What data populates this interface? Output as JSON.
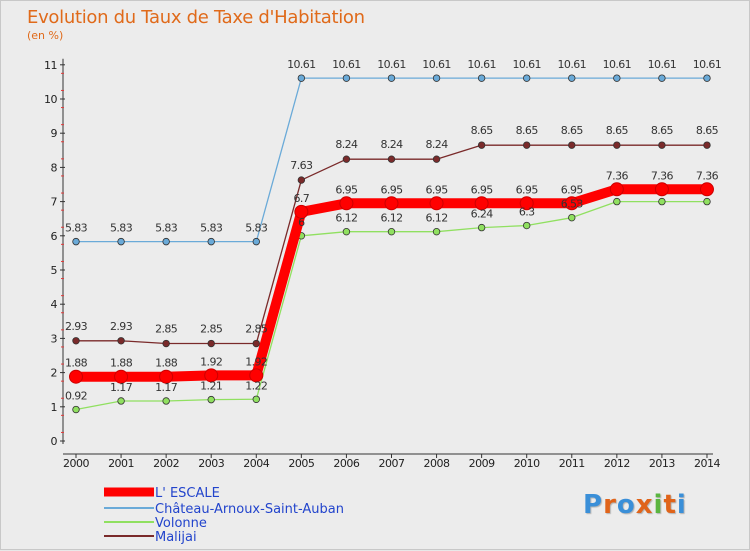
{
  "header": {
    "title": "Evolution du Taux de Taxe d'Habitation",
    "subtitle": "(en %)"
  },
  "chart_data": {
    "type": "line",
    "title": "Evolution du Taux de Taxe d'Habitation",
    "ylabel": "(en %)",
    "xlabel": "",
    "ylim": [
      0,
      11
    ],
    "yticks": [
      "0",
      "1",
      "2",
      "3",
      "4",
      "5",
      "6",
      "7",
      "8",
      "9",
      "10",
      "11"
    ],
    "categories": [
      "2000",
      "2001",
      "2002",
      "2003",
      "2004",
      "2005",
      "2006",
      "2007",
      "2008",
      "2009",
      "2010",
      "2011",
      "2012",
      "2013",
      "2014"
    ],
    "series": [
      {
        "name": "L' ESCALE",
        "color": "#ff0000",
        "values": [
          1.88,
          1.88,
          1.88,
          1.92,
          1.92,
          6.7,
          6.95,
          6.95,
          6.95,
          6.95,
          6.95,
          6.95,
          7.36,
          7.36,
          7.36
        ]
      },
      {
        "name": "Château-Arnoux-Saint-Auban",
        "color": "#6aaad8",
        "values": [
          5.83,
          5.83,
          5.83,
          5.83,
          5.83,
          10.61,
          10.61,
          10.61,
          10.61,
          10.61,
          10.61,
          10.61,
          10.61,
          10.61,
          10.61
        ]
      },
      {
        "name": "Volonne",
        "color": "#90e060",
        "values": [
          0.92,
          1.17,
          1.17,
          1.21,
          1.22,
          6,
          6.12,
          6.12,
          6.12,
          6.24,
          6.3,
          6.53,
          7,
          7,
          7
        ]
      },
      {
        "name": "Malijai",
        "color": "#7a2a2a",
        "values": [
          2.93,
          2.93,
          2.85,
          2.85,
          2.85,
          7.63,
          8.24,
          8.24,
          8.24,
          8.65,
          8.65,
          8.65,
          8.65,
          8.65,
          8.65
        ]
      }
    ],
    "data_labels": {
      "L' ESCALE": [
        "1.88",
        "1.88",
        "1.88",
        "1.92",
        "1.92",
        "6.7",
        "6.95",
        "6.95",
        "6.95",
        "6.95",
        "6.95",
        "6.95",
        "7.36",
        "7.36",
        "7.36"
      ],
      "Château-Arnoux-Saint-Auban": [
        "5.83",
        "5.83",
        "5.83",
        "5.83",
        "5.83",
        "10.61",
        "10.61",
        "10.61",
        "10.61",
        "10.61",
        "10.61",
        "10.61",
        "10.61",
        "10.61",
        "10.61"
      ],
      "Volonne": [
        "0.92",
        "1.17",
        "1.17",
        "1.21",
        "1.22",
        "6",
        "6.12",
        "6.12",
        "6.12",
        "6.24",
        "6.3",
        "6.53",
        "",
        "",
        ""
      ],
      "Malijai": [
        "2.93",
        "2.93",
        "2.85",
        "2.85",
        "2.85",
        "7.63",
        "8.24",
        "8.24",
        "8.24",
        "8.65",
        "8.65",
        "8.65",
        "8.65",
        "8.65",
        "8.65"
      ]
    },
    "legend": {
      "position": "bottom-left",
      "entries": [
        "L' ESCALE",
        "Château-Arnoux-Saint-Auban",
        "Volonne",
        "Malijai"
      ]
    },
    "grid": false
  },
  "branding": {
    "logo_letters": [
      "P",
      "r",
      "o",
      "x",
      "i",
      "t",
      "i"
    ],
    "logo_colors": [
      "#3a8fd8",
      "#e0641a",
      "#3a8fd8",
      "#e0641a",
      "#5ab540",
      "#e0641a",
      "#3a8fd8"
    ]
  }
}
